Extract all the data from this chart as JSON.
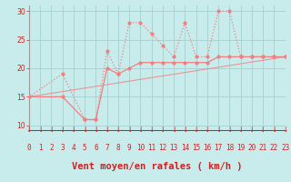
{
  "xlabel": "Vent moyen/en rafales ( km/h )",
  "xlim": [
    0,
    23
  ],
  "ylim": [
    9,
    31
  ],
  "yticks": [
    10,
    15,
    20,
    25,
    30
  ],
  "xticks": [
    0,
    1,
    2,
    3,
    4,
    5,
    6,
    7,
    8,
    9,
    10,
    11,
    12,
    13,
    14,
    15,
    16,
    17,
    18,
    19,
    20,
    21,
    22,
    23
  ],
  "bg_color": "#c8ecec",
  "grid_color": "#aad4d4",
  "line_color": "#f08080",
  "line1_x": [
    0,
    3,
    5,
    6,
    7,
    8,
    9,
    10,
    11,
    12,
    13,
    14,
    15,
    16,
    17,
    18,
    19,
    20,
    21,
    22,
    23
  ],
  "line1_y": [
    15,
    19,
    11,
    11,
    23,
    19,
    28,
    28,
    26,
    24,
    22,
    28,
    22,
    22,
    30,
    30,
    22,
    22,
    22,
    22,
    22
  ],
  "line2_x": [
    0,
    3,
    5,
    6,
    7,
    8,
    9,
    10,
    11,
    12,
    13,
    14,
    15,
    16,
    17,
    18,
    19,
    20,
    21,
    22,
    23
  ],
  "line2_y": [
    15,
    15,
    11,
    11,
    20,
    19,
    20,
    21,
    21,
    21,
    21,
    21,
    21,
    21,
    22,
    22,
    22,
    22,
    22,
    22,
    22
  ],
  "line3_x": [
    0,
    23
  ],
  "line3_y": [
    15,
    22
  ],
  "font_color": "#cc2222",
  "tick_font_size": 5.5,
  "xlabel_fontsize": 7.5
}
